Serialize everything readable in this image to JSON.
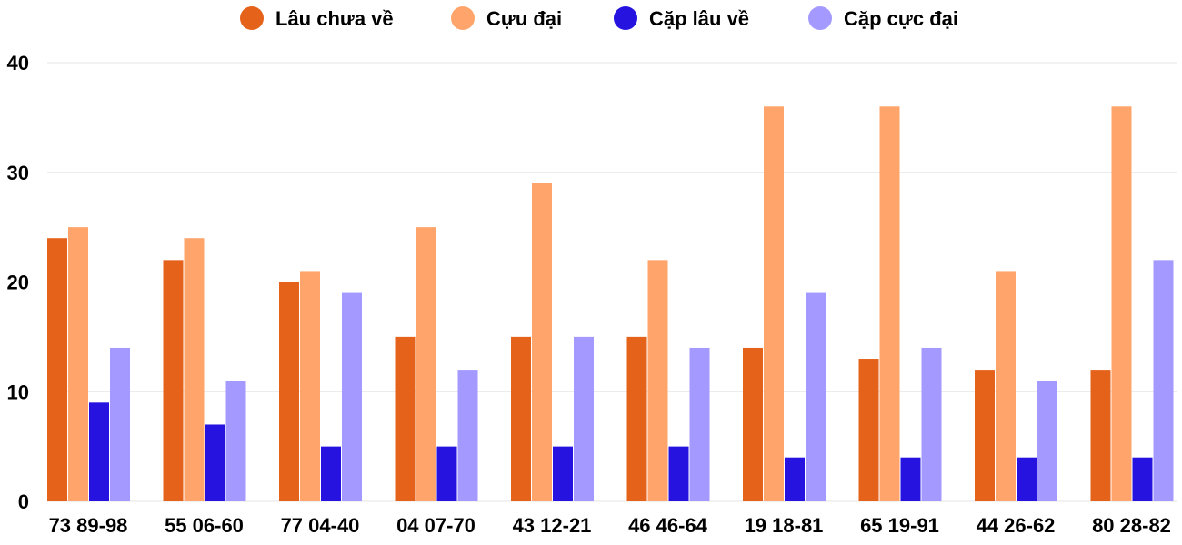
{
  "chart_data": {
    "type": "bar",
    "title": "",
    "xlabel": "",
    "ylabel": "",
    "ylim": [
      0,
      40
    ],
    "yticks": [
      0,
      10,
      20,
      30,
      40
    ],
    "grid": true,
    "legend_position": "top",
    "categories": [
      "73 89-98",
      "55 06-60",
      "77 04-40",
      "04 07-70",
      "43 12-21",
      "46 46-64",
      "19 18-81",
      "65 19-91",
      "44 26-62",
      "80 28-82"
    ],
    "series": [
      {
        "name": "Lâu chưa về",
        "color": "#E5621A",
        "values": [
          24,
          22,
          20,
          15,
          15,
          15,
          14,
          13,
          12,
          12
        ]
      },
      {
        "name": "Cựu đại",
        "color": "#FFA56B",
        "values": [
          25,
          24,
          21,
          25,
          29,
          22,
          36,
          36,
          21,
          36
        ]
      },
      {
        "name": "Cặp lâu về",
        "color": "#2613E0",
        "values": [
          9,
          7,
          5,
          5,
          5,
          5,
          4,
          4,
          4,
          4
        ]
      },
      {
        "name": "Cặp cực đại",
        "color": "#A399FF",
        "values": [
          14,
          11,
          19,
          12,
          15,
          14,
          19,
          14,
          11,
          22
        ]
      }
    ]
  }
}
